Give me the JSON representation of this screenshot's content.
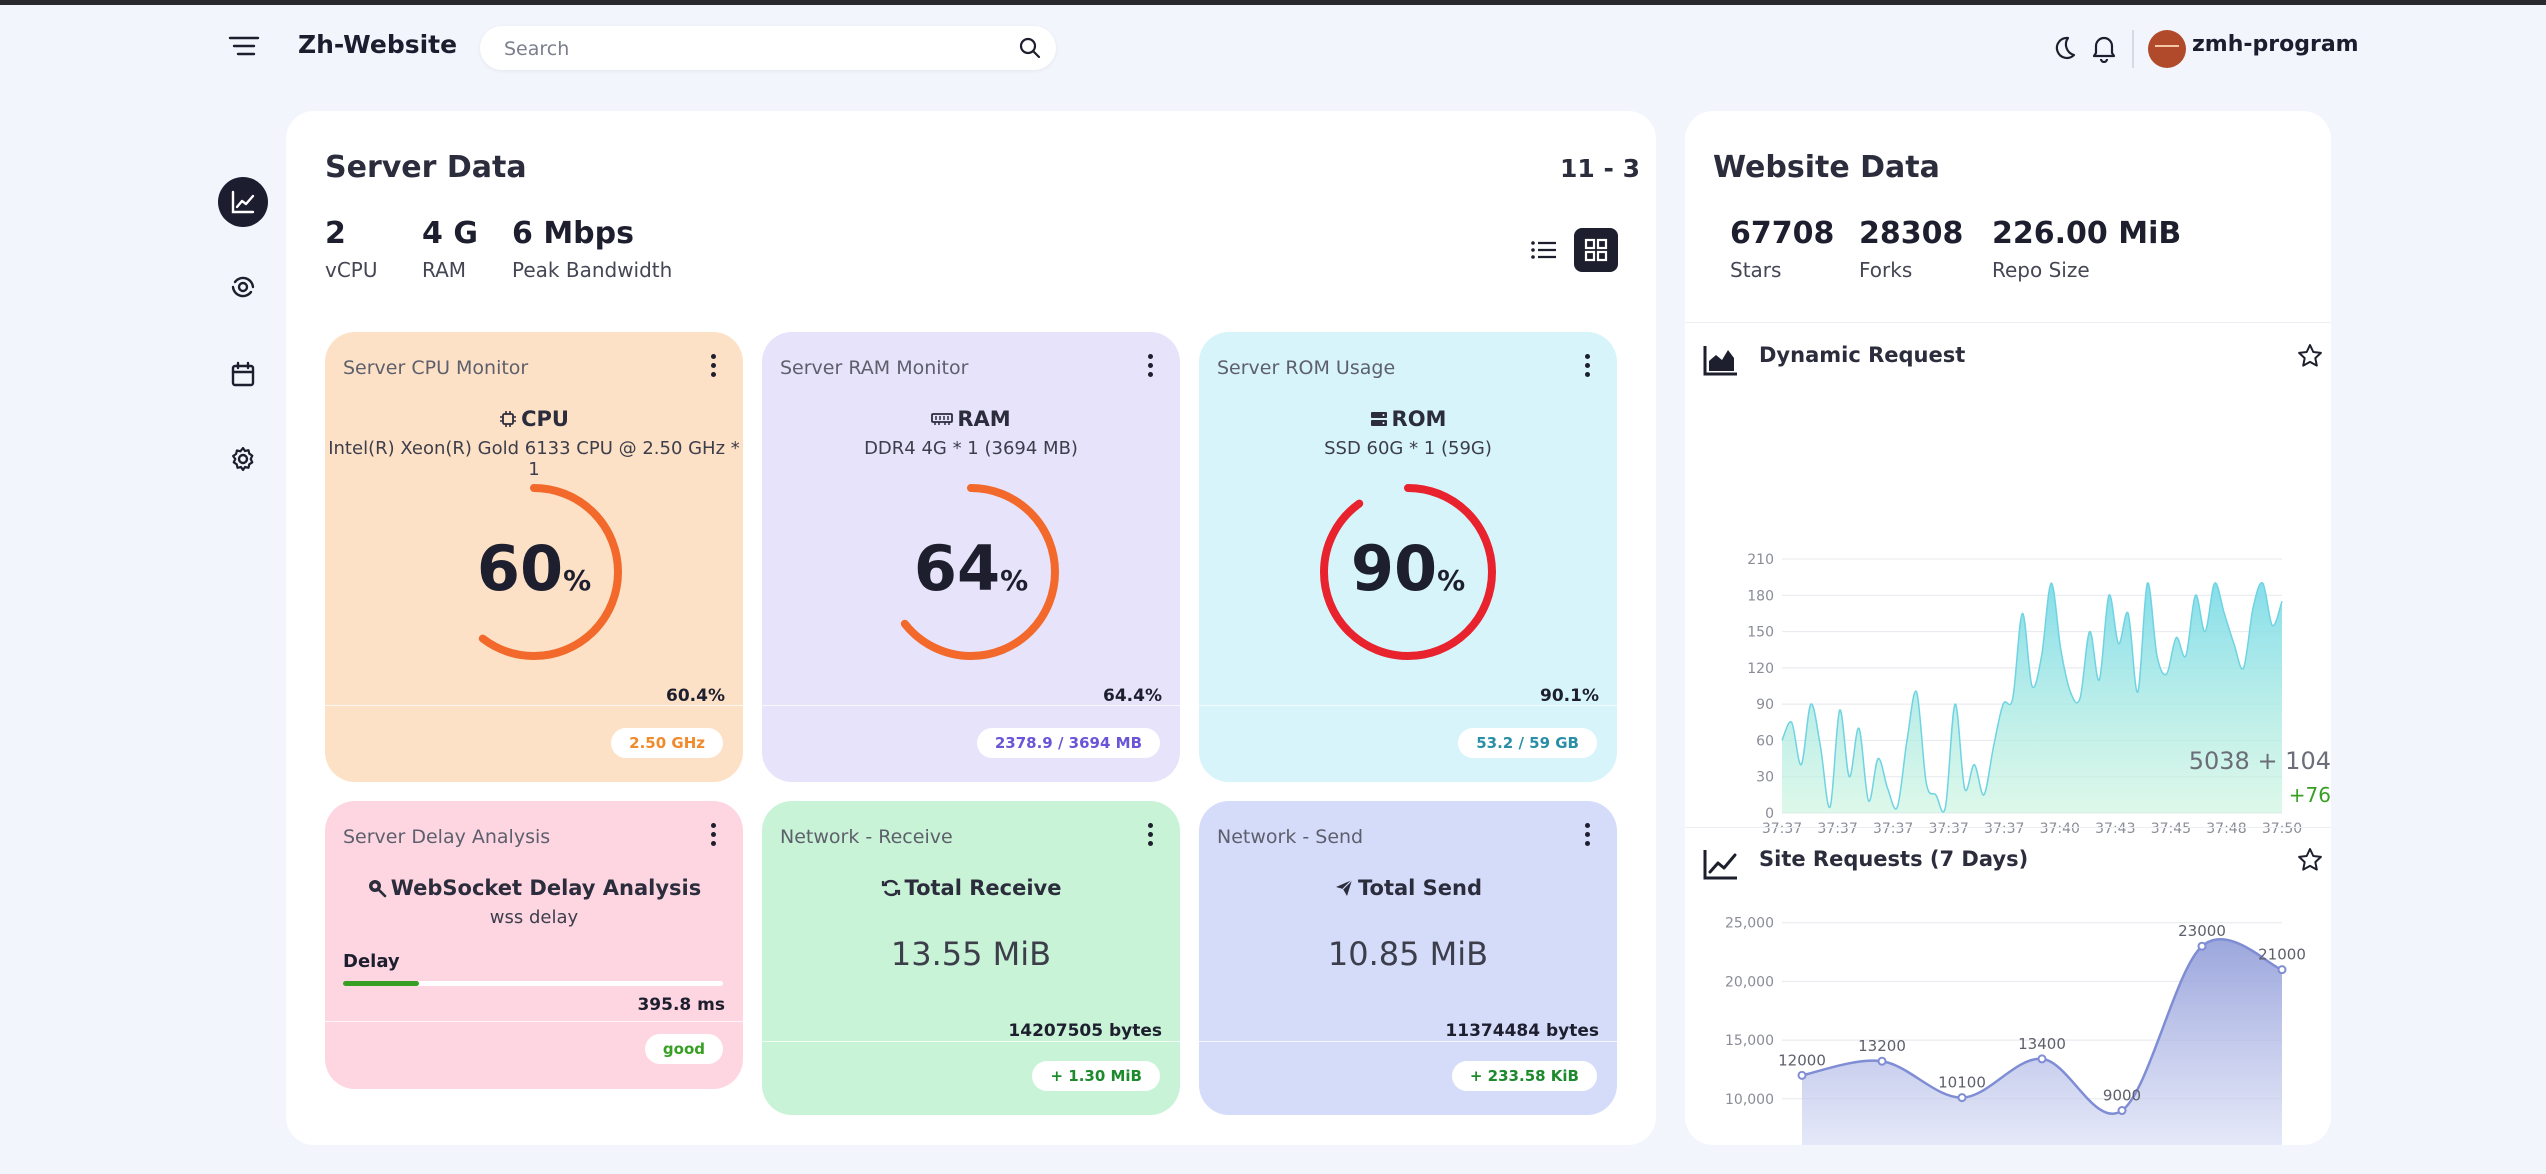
{
  "header": {
    "site_name": "Zh-Website",
    "search_placeholder": "Search",
    "username": "zmh-program",
    "icons": [
      "menu-icon",
      "search-icon",
      "moon-icon",
      "bell-icon",
      "avatar"
    ]
  },
  "nav": {
    "items": [
      {
        "icon": "chart-line-icon",
        "active": true
      },
      {
        "icon": "analytics-icon",
        "active": false
      },
      {
        "icon": "calendar-icon",
        "active": false
      },
      {
        "icon": "gear-icon",
        "active": false
      }
    ]
  },
  "server": {
    "title": "Server Data",
    "date": "11 - 3",
    "stats": [
      {
        "value": "2",
        "label": "vCPU"
      },
      {
        "value": "4 G",
        "label": "RAM"
      },
      {
        "value": "6 Mbps",
        "label": "Peak Bandwidth"
      }
    ],
    "cards": {
      "cpu": {
        "title": "Server CPU Monitor",
        "name": "CPU",
        "sub": "Intel(R) Xeon(R) Gold 6133 CPU @ 2.50 GHz * 1",
        "num": "60",
        "unit": "%",
        "fraction": 0.604,
        "pct": "60.4%",
        "chip": "2.50 GHz",
        "color": "#f2692b",
        "bg": "#fde1c6",
        "chip_color": "#f08a2b"
      },
      "ram": {
        "title": "Server RAM Monitor",
        "name": "RAM",
        "sub": "DDR4 4G * 1 (3694 MB)",
        "num": "64",
        "unit": "%",
        "fraction": 0.644,
        "pct": "64.4%",
        "chip": "2378.9 / 3694 MB",
        "color": "#f2692b",
        "bg": "#e6e3fa",
        "chip_color": "#6a55d8"
      },
      "rom": {
        "title": "Server ROM Usage",
        "name": "ROM",
        "sub": "SSD 60G * 1 (59G)",
        "num": "90",
        "unit": "%",
        "fraction": 0.901,
        "pct": "90.1%",
        "chip": "53.2 / 59 GB",
        "color": "#e8232e",
        "bg": "#d6f4fa",
        "chip_color": "#2a8fa6"
      },
      "delay": {
        "title": "Server Delay Analysis",
        "name": "WebSocket Delay Analysis",
        "sub": "wss delay",
        "bar_label": "Delay",
        "bar_fraction": 0.2,
        "value": "395.8 ms",
        "chip": "good",
        "bg": "#fed6e2",
        "chip_color": "#37a024"
      },
      "receive": {
        "title": "Network - Receive",
        "name": "Total Receive",
        "value": "13.55 MiB",
        "bytes": "14207505 bytes",
        "chip": "+ 1.30 MiB",
        "bg": "#c8f3d6",
        "chip_color": "#1d8a2d"
      },
      "send": {
        "title": "Network - Send",
        "name": "Total Send",
        "value": "10.85 MiB",
        "bytes": "11374484 bytes",
        "chip": "+ 233.58 KiB",
        "bg": "#d5dcfa",
        "chip_color": "#1d8a2d"
      }
    }
  },
  "website": {
    "title": "Website Data",
    "stats": [
      {
        "value": "67708",
        "label": "Stars"
      },
      {
        "value": "28308",
        "label": "Forks"
      },
      {
        "value": "226.00 MiB",
        "label": "Repo Size"
      }
    ],
    "dynamic": {
      "title": "Dynamic Request",
      "total": "5038 + 104",
      "delta": "+76"
    },
    "site7": {
      "title": "Site Requests (7 Days)"
    }
  },
  "chart_data": [
    {
      "type": "area",
      "title": "Dynamic Request",
      "x_ticks": [
        "37:37",
        "37:37",
        "37:37",
        "37:37",
        "37:37",
        "37:40",
        "37:43",
        "37:45",
        "37:48",
        "37:50"
      ],
      "y_ticks": [
        0,
        30,
        60,
        90,
        120,
        150,
        180,
        210
      ],
      "ylim": [
        0,
        210
      ],
      "values": [
        60,
        75,
        40,
        90,
        55,
        5,
        85,
        30,
        70,
        10,
        45,
        20,
        5,
        60,
        100,
        25,
        15,
        5,
        90,
        20,
        40,
        15,
        55,
        90,
        95,
        165,
        105,
        130,
        190,
        135,
        100,
        95,
        150,
        110,
        180,
        140,
        165,
        100,
        190,
        130,
        115,
        145,
        130,
        180,
        150,
        190,
        165,
        140,
        120,
        170,
        190,
        155,
        175
      ],
      "grid": true
    },
    {
      "type": "area",
      "title": "Site Requests (7 Days)",
      "y_ticks": [
        10000,
        15000,
        20000,
        25000
      ],
      "ylim": [
        7000,
        26000
      ],
      "values": [
        12000,
        13200,
        10100,
        13400,
        9000,
        23000,
        21000
      ],
      "data_labels": [
        "12000",
        "13200",
        "10100",
        "13400",
        "9000",
        "23000",
        "21000"
      ],
      "grid": true
    }
  ]
}
